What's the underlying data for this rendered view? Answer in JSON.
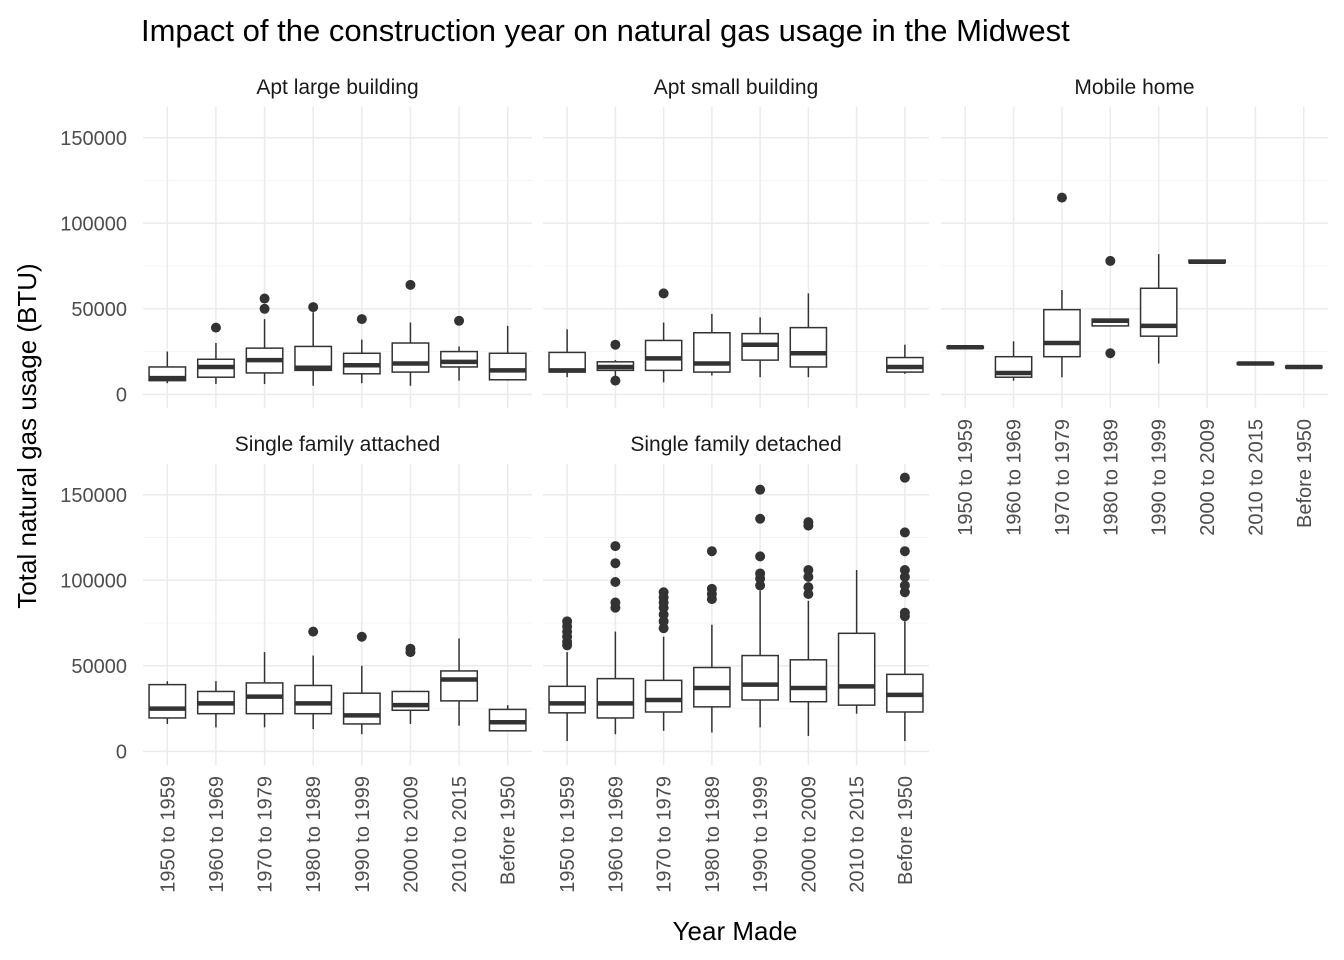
{
  "chart_data": {
    "type": "boxplot",
    "title": "Impact of the construction year on natural gas usage in the Midwest",
    "xlabel": "Year Made",
    "ylabel": "Total natural gas usage (BTU)",
    "ylim": [
      -8000,
      168000
    ],
    "y_ticks": [
      0,
      50000,
      100000,
      150000
    ],
    "y_tick_labels": [
      "0",
      "50000",
      "100000",
      "150000"
    ],
    "categories": [
      "1950 to 1959",
      "1960 to 1969",
      "1970 to 1979",
      "1980 to 1989",
      "1990 to 1999",
      "2000 to 2009",
      "2010 to 2015",
      "Before 1950"
    ],
    "grid": true,
    "facets": [
      {
        "name": "Apt large building",
        "boxes": [
          {
            "category": "1950 to 1959",
            "lower": 6500,
            "q1": 8000,
            "median": 9500,
            "q3": 16000,
            "upper": 25000,
            "outliers": []
          },
          {
            "category": "1960 to 1969",
            "lower": 6000,
            "q1": 10000,
            "median": 16000,
            "q3": 20500,
            "upper": 30000,
            "outliers": [
              39000
            ]
          },
          {
            "category": "1970 to 1979",
            "lower": 6000,
            "q1": 12500,
            "median": 20000,
            "q3": 27000,
            "upper": 44000,
            "outliers": [
              50000,
              56000
            ]
          },
          {
            "category": "1980 to 1989",
            "lower": 5000,
            "q1": 14000,
            "median": 15500,
            "q3": 28000,
            "upper": 48000,
            "outliers": [
              51000
            ]
          },
          {
            "category": "1990 to 1999",
            "lower": 6500,
            "q1": 12000,
            "median": 17000,
            "q3": 24000,
            "upper": 32000,
            "outliers": [
              44000
            ]
          },
          {
            "category": "2000 to 2009",
            "lower": 5000,
            "q1": 13000,
            "median": 18000,
            "q3": 30000,
            "upper": 42000,
            "outliers": [
              64000
            ]
          },
          {
            "category": "2010 to 2015",
            "lower": 8000,
            "q1": 16000,
            "median": 19000,
            "q3": 25000,
            "upper": 28000,
            "outliers": [
              43000
            ]
          },
          {
            "category": "Before 1950",
            "lower": 8000,
            "q1": 8500,
            "median": 14000,
            "q3": 24000,
            "upper": 40000,
            "outliers": []
          }
        ]
      },
      {
        "name": "Apt small building",
        "boxes": [
          {
            "category": "1950 to 1959",
            "lower": 10000,
            "q1": 13000,
            "median": 14000,
            "q3": 24500,
            "upper": 38000,
            "outliers": []
          },
          {
            "category": "1960 to 1969",
            "lower": 10000,
            "q1": 14000,
            "median": 16000,
            "q3": 19000,
            "upper": 20000,
            "outliers": [
              29000,
              8000
            ]
          },
          {
            "category": "1970 to 1979",
            "lower": 7000,
            "q1": 14000,
            "median": 21000,
            "q3": 31500,
            "upper": 42000,
            "outliers": [
              59000
            ]
          },
          {
            "category": "1980 to 1989",
            "lower": 11000,
            "q1": 13000,
            "median": 18000,
            "q3": 36000,
            "upper": 47000,
            "outliers": []
          },
          {
            "category": "1990 to 1999",
            "lower": 10000,
            "q1": 20000,
            "median": 29000,
            "q3": 35500,
            "upper": 45000,
            "outliers": []
          },
          {
            "category": "2000 to 2009",
            "lower": 10000,
            "q1": 16000,
            "median": 24000,
            "q3": 39000,
            "upper": 59000,
            "outliers": []
          },
          {
            "category": "Before 1950",
            "lower": 12000,
            "q1": 13000,
            "median": 16000,
            "q3": 21500,
            "upper": 29000,
            "outliers": []
          }
        ]
      },
      {
        "name": "Mobile home",
        "boxes": [
          {
            "category": "1950 to 1959",
            "lower": 27500,
            "q1": 27000,
            "median": 27500,
            "q3": 28000,
            "upper": 27500,
            "outliers": []
          },
          {
            "category": "1960 to 1969",
            "lower": 8000,
            "q1": 10000,
            "median": 12500,
            "q3": 22000,
            "upper": 31000,
            "outliers": []
          },
          {
            "category": "1970 to 1979",
            "lower": 10000,
            "q1": 22000,
            "median": 30000,
            "q3": 49500,
            "upper": 61000,
            "outliers": [
              115000
            ]
          },
          {
            "category": "1980 to 1989",
            "lower": 40000,
            "q1": 40000,
            "median": 43000,
            "q3": 44000,
            "upper": 44000,
            "outliers": [
              78000,
              24000
            ]
          },
          {
            "category": "1990 to 1999",
            "lower": 18000,
            "q1": 34000,
            "median": 40000,
            "q3": 62000,
            "upper": 82000,
            "outliers": []
          },
          {
            "category": "2000 to 2009",
            "lower": 78000,
            "q1": 77000,
            "median": 77500,
            "q3": 78500,
            "upper": 78000,
            "outliers": []
          },
          {
            "category": "2010 to 2015",
            "lower": 18000,
            "q1": 17500,
            "median": 18000,
            "q3": 18500,
            "upper": 18000,
            "outliers": []
          },
          {
            "category": "Before 1950",
            "lower": 16000,
            "q1": 15500,
            "median": 16000,
            "q3": 16500,
            "upper": 16000,
            "outliers": []
          }
        ]
      },
      {
        "name": "Single family attached",
        "boxes": [
          {
            "category": "1950 to 1959",
            "lower": 16000,
            "q1": 19500,
            "median": 25000,
            "q3": 39000,
            "upper": 41000,
            "outliers": []
          },
          {
            "category": "1960 to 1969",
            "lower": 14000,
            "q1": 22000,
            "median": 28000,
            "q3": 35000,
            "upper": 41000,
            "outliers": []
          },
          {
            "category": "1970 to 1979",
            "lower": 14000,
            "q1": 22000,
            "median": 32000,
            "q3": 40000,
            "upper": 58000,
            "outliers": []
          },
          {
            "category": "1980 to 1989",
            "lower": 13000,
            "q1": 22000,
            "median": 28000,
            "q3": 38500,
            "upper": 56000,
            "outliers": [
              70000
            ]
          },
          {
            "category": "1990 to 1999",
            "lower": 10000,
            "q1": 16000,
            "median": 21000,
            "q3": 34000,
            "upper": 50000,
            "outliers": [
              67000
            ]
          },
          {
            "category": "2000 to 2009",
            "lower": 16000,
            "q1": 24000,
            "median": 27000,
            "q3": 35000,
            "upper": 35000,
            "outliers": [
              60000,
              58000
            ]
          },
          {
            "category": "2010 to 2015",
            "lower": 15000,
            "q1": 29500,
            "median": 42000,
            "q3": 47000,
            "upper": 66000,
            "outliers": []
          },
          {
            "category": "Before 1950",
            "lower": 12000,
            "q1": 12000,
            "median": 17000,
            "q3": 24500,
            "upper": 27000,
            "outliers": []
          }
        ]
      },
      {
        "name": "Single family detached",
        "boxes": [
          {
            "category": "1950 to 1959",
            "lower": 6000,
            "q1": 22500,
            "median": 28000,
            "q3": 38000,
            "upper": 58000,
            "outliers": [
              62000,
              64000,
              67000,
              70000,
              73000,
              76000
            ]
          },
          {
            "category": "1960 to 1969",
            "lower": 10000,
            "q1": 19500,
            "median": 28000,
            "q3": 42500,
            "upper": 70000,
            "outliers": [
              84000,
              87000,
              99000,
              110000,
              120000
            ]
          },
          {
            "category": "1970 to 1979",
            "lower": 12000,
            "q1": 23000,
            "median": 30000,
            "q3": 41500,
            "upper": 67000,
            "outliers": [
              72000,
              76000,
              80000,
              84000,
              87000,
              90000,
              93000
            ]
          },
          {
            "category": "1980 to 1989",
            "lower": 11000,
            "q1": 26000,
            "median": 37000,
            "q3": 49000,
            "upper": 74000,
            "outliers": [
              89000,
              92000,
              95000,
              117000
            ]
          },
          {
            "category": "1990 to 1999",
            "lower": 14000,
            "q1": 30000,
            "median": 39000,
            "q3": 56000,
            "upper": 94000,
            "outliers": [
              97000,
              101000,
              104000,
              114000,
              136000,
              153000
            ]
          },
          {
            "category": "2000 to 2009",
            "lower": 9000,
            "q1": 29000,
            "median": 37000,
            "q3": 53500,
            "upper": 88000,
            "outliers": [
              92000,
              96000,
              102000,
              106000,
              132000,
              134000
            ]
          },
          {
            "category": "2010 to 2015",
            "lower": 22000,
            "q1": 27000,
            "median": 38000,
            "q3": 69000,
            "upper": 106000,
            "outliers": []
          },
          {
            "category": "Before 1950",
            "lower": 6000,
            "q1": 23000,
            "median": 33000,
            "q3": 45000,
            "upper": 76000,
            "outliers": [
              79000,
              81000,
              93000,
              97000,
              102000,
              106000,
              117000,
              128000,
              160000
            ]
          }
        ]
      }
    ]
  }
}
